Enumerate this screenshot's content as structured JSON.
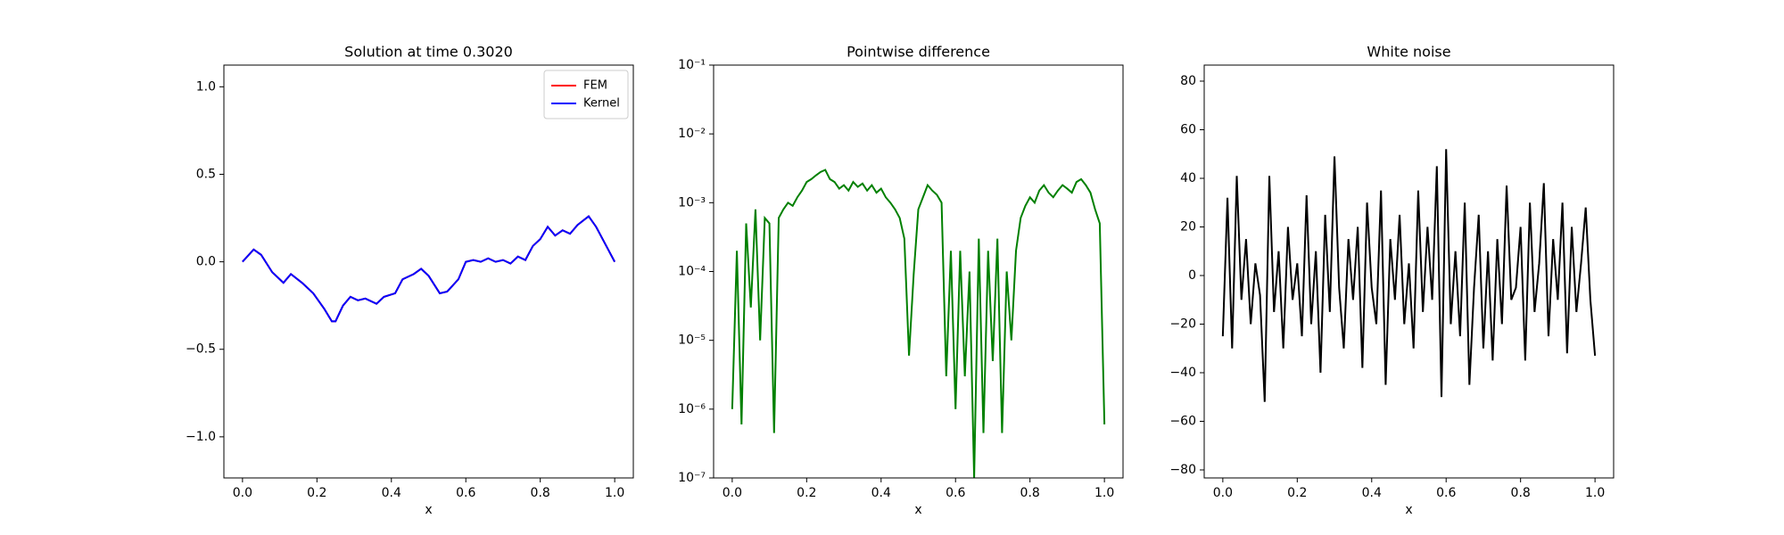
{
  "chart_data": [
    {
      "type": "line",
      "title": "Solution at time 0.3020",
      "xlabel": "x",
      "x": [
        0,
        0.03,
        0.05,
        0.08,
        0.11,
        0.13,
        0.16,
        0.19,
        0.22,
        0.24,
        0.25,
        0.27,
        0.29,
        0.31,
        0.33,
        0.36,
        0.38,
        0.41,
        0.43,
        0.46,
        0.48,
        0.5,
        0.53,
        0.55,
        0.58,
        0.6,
        0.62,
        0.64,
        0.66,
        0.68,
        0.7,
        0.72,
        0.74,
        0.76,
        0.78,
        0.8,
        0.82,
        0.84,
        0.86,
        0.88,
        0.9,
        0.93,
        0.95,
        0.97,
        1.0
      ],
      "series": [
        {
          "name": "FEM",
          "color": "#ff0000",
          "values": [
            0,
            0.07,
            0.04,
            -0.06,
            -0.12,
            -0.07,
            -0.12,
            -0.18,
            -0.27,
            -0.34,
            -0.34,
            -0.25,
            -0.2,
            -0.22,
            -0.21,
            -0.24,
            -0.2,
            -0.18,
            -0.1,
            -0.07,
            -0.04,
            -0.08,
            -0.18,
            -0.17,
            -0.1,
            0,
            0.01,
            0,
            0.02,
            0,
            0.01,
            -0.01,
            0.03,
            0.01,
            0.09,
            0.13,
            0.2,
            0.15,
            0.18,
            0.16,
            0.21,
            0.26,
            0.2,
            0.12,
            0
          ]
        },
        {
          "name": "Kernel",
          "color": "#0000ff",
          "values": [
            0,
            0.07,
            0.04,
            -0.06,
            -0.12,
            -0.07,
            -0.12,
            -0.18,
            -0.27,
            -0.34,
            -0.34,
            -0.25,
            -0.2,
            -0.22,
            -0.21,
            -0.24,
            -0.2,
            -0.18,
            -0.1,
            -0.07,
            -0.04,
            -0.08,
            -0.18,
            -0.17,
            -0.1,
            0,
            0.01,
            0,
            0.02,
            0,
            0.01,
            -0.01,
            0.03,
            0.01,
            0.09,
            0.13,
            0.2,
            0.15,
            0.18,
            0.16,
            0.21,
            0.26,
            0.2,
            0.12,
            0
          ]
        }
      ],
      "xlim": [
        -0.05,
        1.05
      ],
      "xticks": [
        {
          "value": 0,
          "label": "0.0"
        },
        0.2,
        0.4,
        0.6,
        0.8,
        {
          "value": 1,
          "label": "1.0"
        }
      ],
      "ylim": [
        -1.235,
        1.124
      ],
      "yticks": [
        {
          "value": -1,
          "label": "−1.0"
        },
        {
          "value": -0.5,
          "label": "−0.5"
        },
        {
          "value": 0,
          "label": "0.0"
        },
        0.5,
        {
          "value": 1,
          "label": "1.0"
        }
      ],
      "legend": "upper right"
    },
    {
      "type": "line",
      "title": "Pointwise difference",
      "xlabel": "x",
      "log_y": true,
      "x": [
        0,
        0.0125,
        0.025,
        0.0375,
        0.05,
        0.0625,
        0.075,
        0.0875,
        0.1,
        0.1125,
        0.125,
        0.1375,
        0.15,
        0.1625,
        0.175,
        0.1875,
        0.2,
        0.2125,
        0.225,
        0.2375,
        0.25,
        0.2625,
        0.275,
        0.2875,
        0.3,
        0.3125,
        0.325,
        0.3375,
        0.35,
        0.3625,
        0.375,
        0.3875,
        0.4,
        0.4125,
        0.425,
        0.4375,
        0.45,
        0.4625,
        0.475,
        0.4875,
        0.5,
        0.5125,
        0.525,
        0.5375,
        0.55,
        0.5625,
        0.575,
        0.5875,
        0.6,
        0.6125,
        0.625,
        0.6375,
        0.65,
        0.6625,
        0.675,
        0.6875,
        0.7,
        0.7125,
        0.725,
        0.7375,
        0.75,
        0.7625,
        0.775,
        0.7875,
        0.8,
        0.8125,
        0.825,
        0.8375,
        0.85,
        0.8625,
        0.875,
        0.8875,
        0.9,
        0.9125,
        0.925,
        0.9375,
        0.95,
        0.9625,
        0.975,
        0.9875,
        1
      ],
      "series": [
        {
          "color": "#008000",
          "values": [
            1e-06,
            0.0002,
            6e-07,
            0.0005,
            3e-05,
            0.0008,
            1e-05,
            0.0006,
            0.0005,
            4.5e-07,
            0.0006,
            0.0008,
            0.001,
            0.0009,
            0.0012,
            0.0015,
            0.002,
            0.0022,
            0.0025,
            0.0028,
            0.003,
            0.0022,
            0.002,
            0.0016,
            0.0018,
            0.0015,
            0.002,
            0.0017,
            0.0019,
            0.0015,
            0.0018,
            0.0014,
            0.0016,
            0.0012,
            0.001,
            0.0008,
            0.0006,
            0.0003,
            6e-06,
            9e-05,
            0.0008,
            0.0012,
            0.0018,
            0.0015,
            0.0013,
            0.001,
            3e-06,
            0.0002,
            1e-06,
            0.0002,
            3e-06,
            0.0001,
            1e-07,
            0.0003,
            4.5e-07,
            0.0002,
            5e-06,
            0.0003,
            4.5e-07,
            0.0001,
            1e-05,
            0.0002,
            0.0006,
            0.0009,
            0.0012,
            0.001,
            0.0015,
            0.0018,
            0.0014,
            0.0012,
            0.0015,
            0.0018,
            0.0016,
            0.0014,
            0.002,
            0.0022,
            0.0018,
            0.0014,
            0.0008,
            0.0005,
            6e-07
          ]
        }
      ],
      "xlim": [
        -0.05,
        1.05
      ],
      "xticks": [
        {
          "value": 0,
          "label": "0.0"
        },
        0.2,
        0.4,
        0.6,
        0.8,
        {
          "value": 1,
          "label": "1.0"
        }
      ],
      "ylim": [
        1e-07,
        0.1
      ],
      "yticks": [
        {
          "value": 1e-07,
          "label": "10⁻⁷"
        },
        {
          "value": 1e-06,
          "label": "10⁻⁶"
        },
        {
          "value": 1e-05,
          "label": "10⁻⁵"
        },
        {
          "value": 0.0001,
          "label": "10⁻⁴"
        },
        {
          "value": 0.001,
          "label": "10⁻³"
        },
        {
          "value": 0.01,
          "label": "10⁻²"
        },
        {
          "value": 0.1,
          "label": "10⁻¹"
        }
      ]
    },
    {
      "type": "line",
      "title": "White noise",
      "xlabel": "x",
      "x": [
        0,
        0.0125,
        0.025,
        0.0375,
        0.05,
        0.0625,
        0.075,
        0.0875,
        0.1,
        0.1125,
        0.125,
        0.1375,
        0.15,
        0.1625,
        0.175,
        0.1875,
        0.2,
        0.2125,
        0.225,
        0.2375,
        0.25,
        0.2625,
        0.275,
        0.2875,
        0.3,
        0.3125,
        0.325,
        0.3375,
        0.35,
        0.3625,
        0.375,
        0.3875,
        0.4,
        0.4125,
        0.425,
        0.4375,
        0.45,
        0.4625,
        0.475,
        0.4875,
        0.5,
        0.5125,
        0.525,
        0.5375,
        0.55,
        0.5625,
        0.575,
        0.5875,
        0.6,
        0.6125,
        0.625,
        0.6375,
        0.65,
        0.6625,
        0.675,
        0.6875,
        0.7,
        0.7125,
        0.725,
        0.7375,
        0.75,
        0.7625,
        0.775,
        0.7875,
        0.8,
        0.8125,
        0.825,
        0.8375,
        0.85,
        0.8625,
        0.875,
        0.8875,
        0.9,
        0.9125,
        0.925,
        0.9375,
        0.95,
        0.9625,
        0.975,
        0.9875,
        1
      ],
      "series": [
        {
          "color": "#000000",
          "values": [
            -25,
            32,
            -30,
            41,
            -10,
            15,
            -20,
            5,
            -8,
            -52,
            41,
            -15,
            10,
            -30,
            20,
            -10,
            5,
            -25,
            33,
            -20,
            10,
            -40,
            25,
            -15,
            49,
            -5,
            -30,
            15,
            -10,
            20,
            -38,
            30,
            -5,
            -20,
            35,
            -45,
            15,
            -10,
            25,
            -20,
            5,
            -30,
            35,
            -15,
            20,
            -10,
            45,
            -50,
            52,
            -20,
            10,
            -25,
            30,
            -45,
            -5,
            25,
            -30,
            10,
            -35,
            15,
            -20,
            37,
            -10,
            -5,
            20,
            -35,
            30,
            -15,
            5,
            38,
            -25,
            15,
            -10,
            30,
            -32,
            20,
            -15,
            5,
            28,
            -10,
            -33
          ]
        }
      ],
      "xlim": [
        -0.05,
        1.05
      ],
      "xticks": [
        {
          "value": 0,
          "label": "0.0"
        },
        0.2,
        0.4,
        0.6,
        0.8,
        {
          "value": 1,
          "label": "1.0"
        }
      ],
      "ylim": [
        -83.3,
        86.6
      ],
      "yticks": [
        {
          "value": -80,
          "label": "−80"
        },
        {
          "value": -60,
          "label": "−60"
        },
        {
          "value": -40,
          "label": "−40"
        },
        {
          "value": -20,
          "label": "−20"
        },
        0,
        20,
        40,
        60,
        80
      ]
    }
  ]
}
